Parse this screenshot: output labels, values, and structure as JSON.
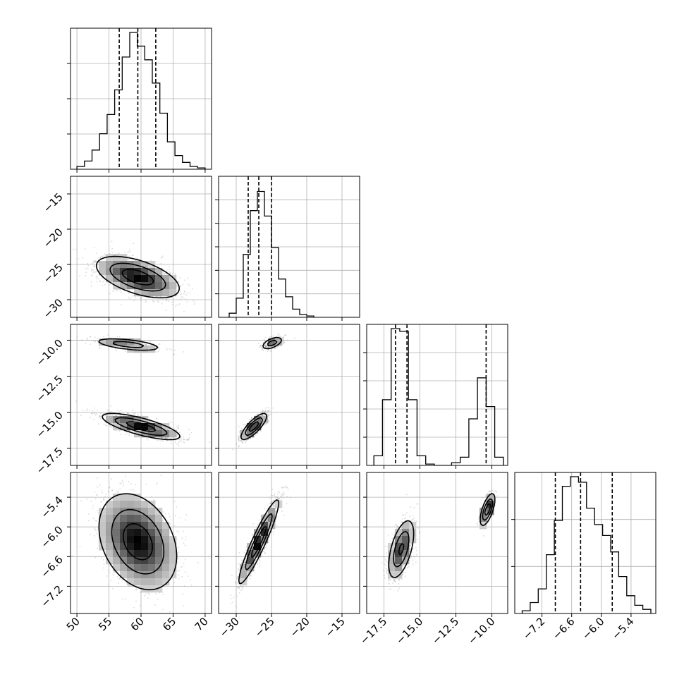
{
  "chart_data": {
    "type": "corner",
    "parameters": [
      {
        "range": [
          49,
          71
        ],
        "ticks": [
          50,
          55,
          60,
          65,
          70
        ],
        "tick_labels": [
          "50",
          "55",
          "60",
          "65",
          "70"
        ],
        "quantiles": [
          56.6,
          59.5,
          62.3
        ],
        "hist_ticks": [
          1,
          2,
          3
        ]
      },
      {
        "range": [
          -32.5,
          -12.5
        ],
        "ticks": [
          -30,
          -25,
          -20,
          -15
        ],
        "tick_labels": [
          "−30",
          "−25",
          "−20",
          "−15"
        ],
        "quantiles": [
          -28.3,
          -26.8,
          -25.0
        ],
        "hist_ticks": [
          1,
          2,
          3,
          4,
          5
        ]
      },
      {
        "range": [
          -18.7,
          -8.9
        ],
        "ticks": [
          -17.5,
          -15.0,
          -12.5,
          -10.0
        ],
        "tick_labels": [
          "−17.5",
          "−15.0",
          "−12.5",
          "−10.0"
        ],
        "quantiles": [
          -16.7,
          -15.9,
          -10.4
        ],
        "hist_ticks": [
          1,
          2,
          3,
          4
        ]
      },
      {
        "range": [
          -7.75,
          -4.9
        ],
        "ticks": [
          -7.2,
          -6.6,
          -6.0,
          -5.4
        ],
        "tick_labels": [
          "−7.2",
          "−6.6",
          "−6.0",
          "−5.4"
        ],
        "quantiles": [
          -6.93,
          -6.42,
          -5.78
        ],
        "hist_ticks": [
          1,
          2
        ]
      }
    ],
    "histograms": [
      {
        "values": [
          0.02,
          0.06,
          0.14,
          0.26,
          0.4,
          0.58,
          0.82,
          1.0,
          0.9,
          0.8,
          0.63,
          0.41,
          0.2,
          0.1,
          0.05,
          0.02,
          0.01
        ],
        "edges": [
          50,
          70
        ]
      },
      {
        "values": [
          0.03,
          0.14,
          0.46,
          0.78,
          0.92,
          0.74,
          0.51,
          0.28,
          0.15,
          0.06,
          0.02,
          0.01
        ],
        "edges": [
          -31,
          -19
        ]
      },
      {
        "values": [
          0.07,
          0.48,
          1.0,
          0.98,
          0.48,
          0.07,
          0.01,
          0.0,
          0.0,
          0.02,
          0.06,
          0.34,
          0.64,
          0.43,
          0.06
        ],
        "edges": [
          -18.2,
          -9.2
        ]
      },
      {
        "values": [
          0.02,
          0.08,
          0.18,
          0.43,
          0.68,
          0.93,
          1.0,
          0.96,
          0.77,
          0.65,
          0.57,
          0.45,
          0.27,
          0.13,
          0.06,
          0.03
        ],
        "edges": [
          -7.6,
          -5.0
        ]
      }
    ],
    "pairs": [
      {
        "x": 0,
        "y": 1,
        "modes": [
          {
            "mx": 59.5,
            "my": -26.8,
            "sx": 3.2,
            "sy": 1.45,
            "rho": -0.55,
            "w": 1.0
          }
        ]
      },
      {
        "x": 0,
        "y": 2,
        "modes": [
          {
            "mx": 60.0,
            "my": -16.0,
            "sx": 3.0,
            "sy": 0.45,
            "rho": -0.75,
            "w": 0.75
          },
          {
            "mx": 58.0,
            "my": -10.3,
            "sx": 2.6,
            "sy": 0.22,
            "rho": -0.55,
            "w": 0.25
          }
        ]
      },
      {
        "x": 0,
        "y": 3,
        "modes": [
          {
            "mx": 59.5,
            "my": -6.3,
            "sx": 3.0,
            "sy": 0.48,
            "rho": -0.3,
            "w": 1.0
          }
        ]
      },
      {
        "x": 1,
        "y": 2,
        "modes": [
          {
            "mx": -27.5,
            "my": -16.0,
            "sx": 0.9,
            "sy": 0.45,
            "rho": 0.8,
            "w": 0.75
          },
          {
            "mx": -24.9,
            "my": -10.2,
            "sx": 0.75,
            "sy": 0.22,
            "rho": 0.55,
            "w": 0.25
          }
        ]
      },
      {
        "x": 1,
        "y": 3,
        "modes": [
          {
            "mx": -26.8,
            "my": -6.3,
            "sx": 1.4,
            "sy": 0.42,
            "rho": 0.93,
            "w": 1.0
          }
        ]
      },
      {
        "x": 2,
        "y": 3,
        "modes": [
          {
            "mx": -16.3,
            "my": -6.45,
            "sx": 0.45,
            "sy": 0.3,
            "rho": 0.55,
            "w": 0.75
          },
          {
            "mx": -10.3,
            "my": -5.65,
            "sx": 0.25,
            "sy": 0.16,
            "rho": 0.65,
            "w": 0.25
          }
        ]
      }
    ],
    "grid": true,
    "title": "",
    "xlabel": "",
    "ylabel": ""
  }
}
